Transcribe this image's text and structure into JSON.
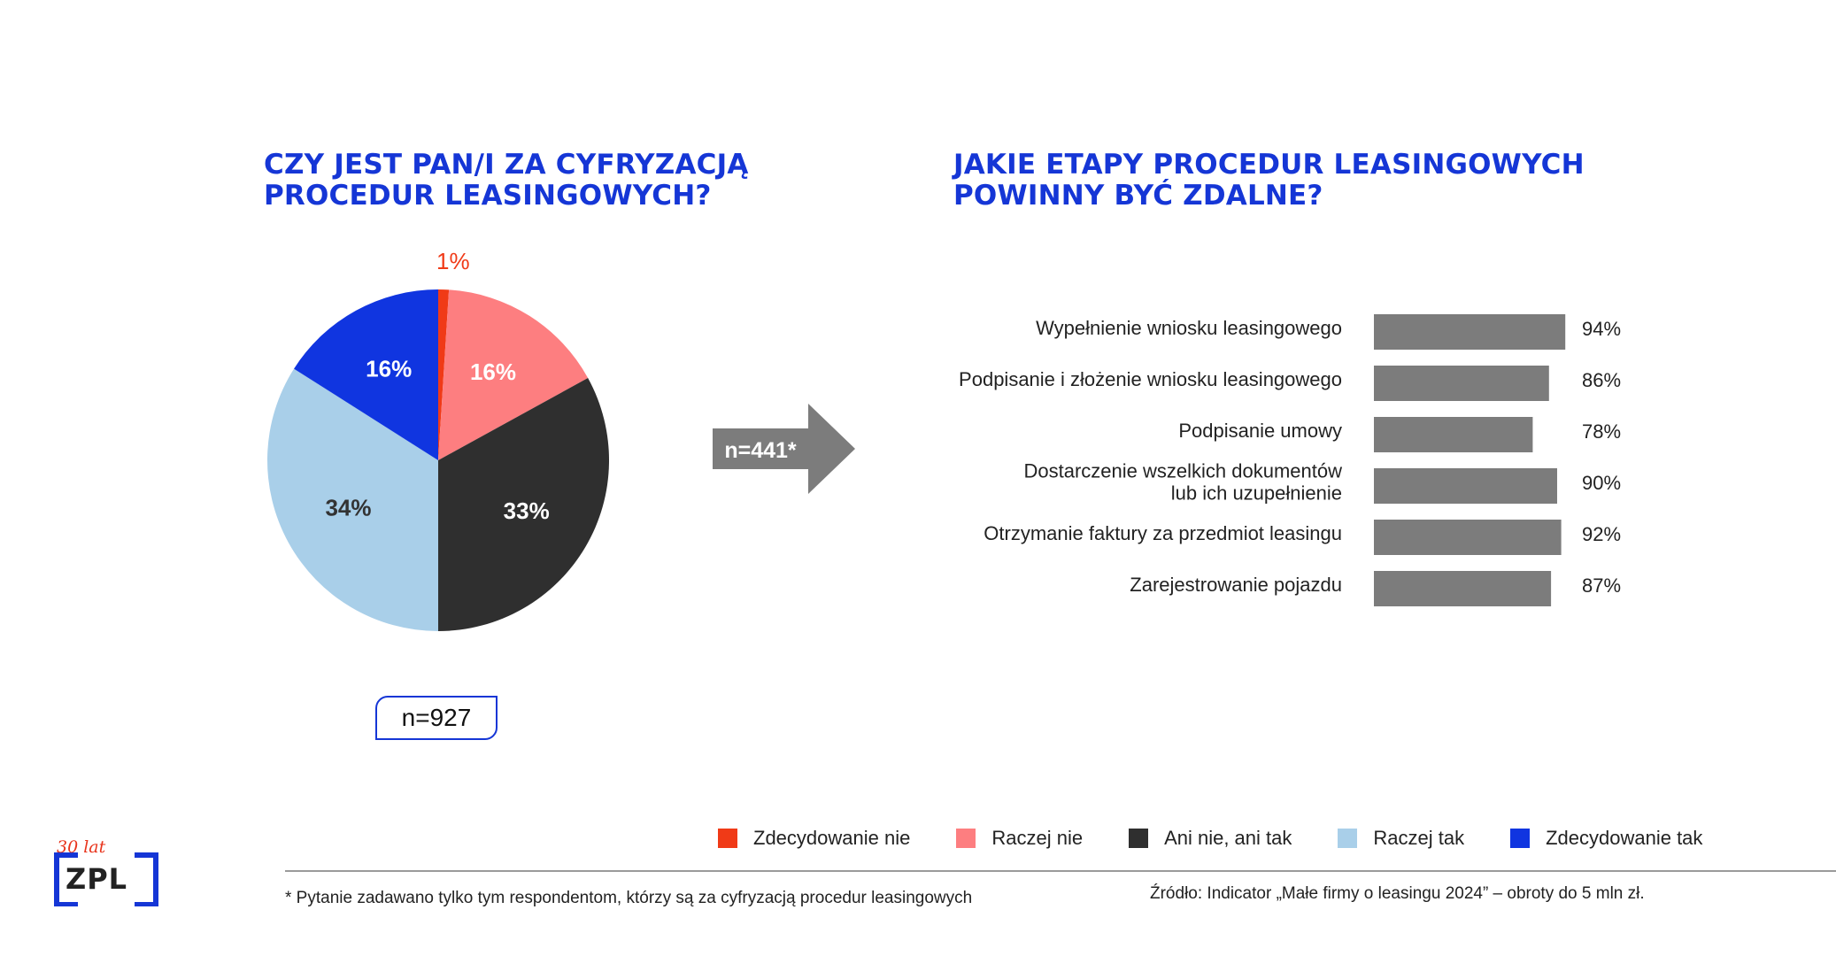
{
  "left_title": [
    "CZY JEST PAN/I ZA CYFRYZACJĄ",
    "PROCEDUR LEASINGOWYCH?"
  ],
  "right_title": [
    "JAKIE ETAPY PROCEDUR LEASINGOWYCH",
    "POWINNY BYĆ ZDALNE?"
  ],
  "left_n": "n=927",
  "arrow_n": "n=441*",
  "footnote": "* Pytanie zadawano tylko tym respondentom, którzy są za cyfryzacją procedur leasingowych",
  "source": "Źródło: Indicator „Małe firmy o leasingu 2024” – obroty do 5 mln zł.",
  "logo": {
    "tagline": "30 lat",
    "text": "ZPL"
  },
  "legend": [
    {
      "label": "Zdecydowanie nie",
      "color": "#f03a17"
    },
    {
      "label": "Raczej nie",
      "color": "#fd7e80"
    },
    {
      "label": "Ani nie, ani tak",
      "color": "#2f2f2f"
    },
    {
      "label": "Raczej tak",
      "color": "#a9cfe9"
    },
    {
      "label": "Zdecydowanie tak",
      "color": "#1035e0"
    }
  ],
  "chart_data": [
    {
      "type": "pie",
      "title": "CZY JEST PAN/I ZA CYFRYZACJĄ PROCEDUR LEASINGOWYCH?",
      "slices": [
        {
          "label": "Zdecydowanie nie",
          "value": 1,
          "display": "1%",
          "color": "#f03a17",
          "label_color": "#f03a17"
        },
        {
          "label": "Raczej nie",
          "value": 16,
          "display": "16%",
          "color": "#fd7e80",
          "label_color": "#ffffff"
        },
        {
          "label": "Ani nie, ani tak",
          "value": 33,
          "display": "33%",
          "color": "#2f2f2f",
          "label_color": "#ffffff"
        },
        {
          "label": "Raczej tak",
          "value": 34,
          "display": "34%",
          "color": "#a9cfe9",
          "label_color": "#333333"
        },
        {
          "label": "Zdecydowanie tak",
          "value": 16,
          "display": "16%",
          "color": "#1035e0",
          "label_color": "#ffffff"
        }
      ],
      "n": "n=927"
    },
    {
      "type": "bar",
      "orientation": "horizontal",
      "title": "JAKIE ETAPY PROCEDUR LEASINGOWYCH POWINNY BYĆ ZDALNE?",
      "bar_color": "#7c7c7c",
      "categories": [
        [
          "Wypełnienie wniosku leasingowego"
        ],
        [
          "Podpisanie i złożenie wniosku leasingowego"
        ],
        [
          "Podpisanie umowy"
        ],
        [
          "Dostarczenie wszelkich dokumentów",
          "lub ich uzupełnienie"
        ],
        [
          "Otrzymanie faktury za przedmiot leasingu"
        ],
        [
          "Zarejestrowanie pojazdu"
        ]
      ],
      "values": [
        94,
        86,
        78,
        90,
        92,
        87
      ],
      "value_labels": [
        "94%",
        "86%",
        "78%",
        "90%",
        "92%",
        "87%"
      ],
      "n": "n=441*"
    }
  ]
}
